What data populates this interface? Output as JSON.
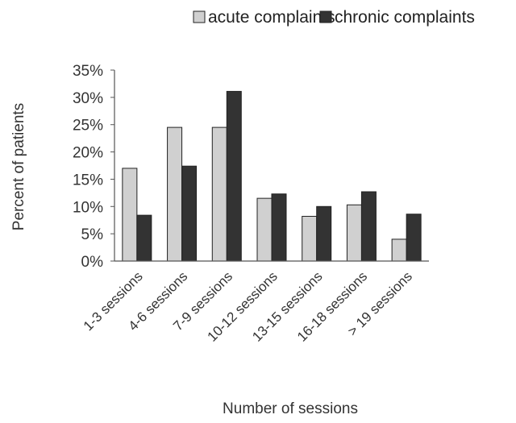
{
  "chart_data": {
    "type": "bar",
    "title": "",
    "xlabel": "Number of sessions",
    "ylabel": "Percent of patients",
    "ylim": [
      0,
      35
    ],
    "yticks": [
      "0%",
      "5%",
      "10%",
      "15%",
      "20%",
      "25%",
      "30%",
      "35%"
    ],
    "grid": false,
    "legend_position": "top-right",
    "categories": [
      "1-3 sessions",
      "4-6 sessions",
      "7-9 sessions",
      "10-12 sessions",
      "13-15 sessions",
      "16-18 sessions",
      "> 19 sessions"
    ],
    "series": [
      {
        "name": "acute complaints",
        "color": "#d0d0d0",
        "values": [
          17,
          24.5,
          24.5,
          11.5,
          8.2,
          10.3,
          4
        ]
      },
      {
        "name": "chronic complaints",
        "color": "#333333",
        "values": [
          8.4,
          17.4,
          31.1,
          12.3,
          10,
          12.7,
          8.6
        ]
      }
    ]
  }
}
